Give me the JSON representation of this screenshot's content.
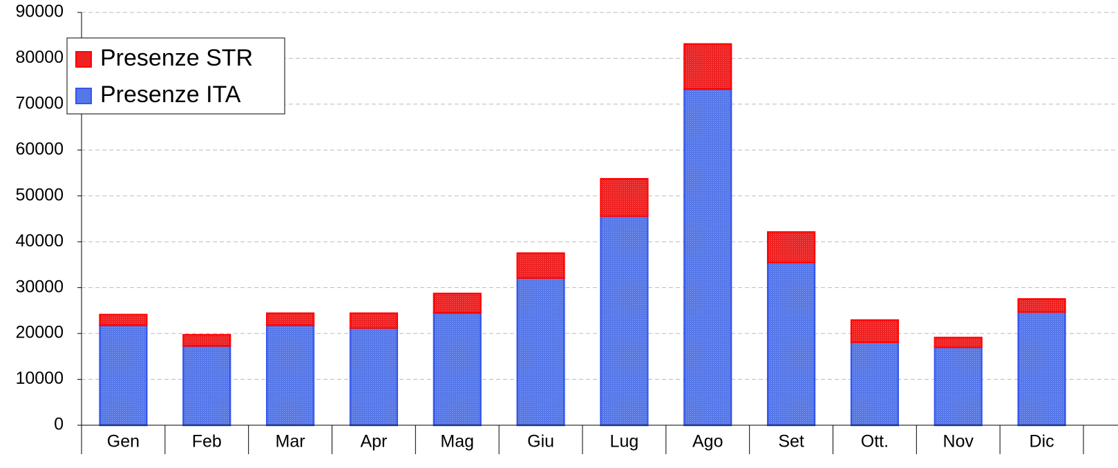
{
  "chart_data": {
    "type": "stacked_bar",
    "categories": [
      "Gen",
      "Feb",
      "Mar",
      "Apr",
      "Mag",
      "Giu",
      "Lug",
      "Ago",
      "Set",
      "Ott.",
      "Nov",
      "Dic"
    ],
    "series": [
      {
        "name": "Presenze ITA",
        "color": "#5577e8",
        "values": [
          21800,
          17300,
          21800,
          21200,
          24500,
          32100,
          45600,
          73300,
          35500,
          18100,
          17000,
          24700
        ]
      },
      {
        "name": "Presenze STR",
        "color": "#ee2222",
        "values": [
          2300,
          2400,
          2600,
          3200,
          4200,
          5400,
          8100,
          9800,
          6600,
          4800,
          2100,
          2800
        ]
      }
    ],
    "ylim": [
      0,
      90000
    ],
    "yticks": [
      0,
      10000,
      20000,
      30000,
      40000,
      50000,
      60000,
      70000,
      80000,
      90000
    ],
    "grid": true,
    "legend": "top-left"
  }
}
